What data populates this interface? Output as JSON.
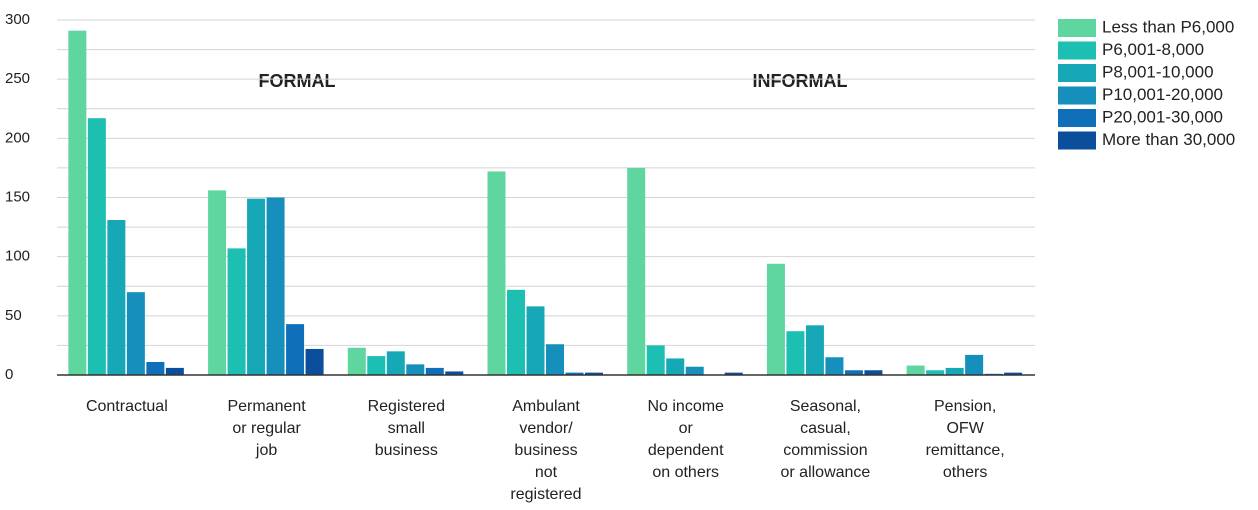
{
  "chart_data": {
    "type": "bar",
    "annotations": [
      "FORMAL",
      "INFORMAL"
    ],
    "categories": [
      "Contractual",
      "Permanent\nor regular\njob",
      "Registered\nsmall\nbusiness",
      "Ambulant\nvendor/\nbusiness\nnot\nregistered",
      "No income\nor\ndependent\non others",
      "Seasonal,\ncasual,\ncommission\nor allowance",
      "Pension,\nOFW\nremittance,\nothers"
    ],
    "series": [
      {
        "name": "Less than P6,000",
        "color": "#5fd6a0",
        "values": [
          291,
          156,
          23,
          172,
          175,
          94,
          8
        ]
      },
      {
        "name": "P6,001-8,000",
        "color": "#1dbfb3",
        "values": [
          217,
          107,
          16,
          72,
          25,
          37,
          4
        ]
      },
      {
        "name": "P8,001-10,000",
        "color": "#17a8b8",
        "values": [
          131,
          149,
          20,
          58,
          14,
          42,
          6
        ]
      },
      {
        "name": "P10,001-20,000",
        "color": "#168fbd",
        "values": [
          70,
          150,
          9,
          26,
          7,
          15,
          17
        ]
      },
      {
        "name": "P20,001-30,000",
        "color": "#0f6fb8",
        "values": [
          11,
          43,
          6,
          2,
          0,
          4,
          1
        ]
      },
      {
        "name": "More than 30,000",
        "color": "#0b4f9c",
        "values": [
          6,
          22,
          3,
          2,
          2,
          4,
          2
        ]
      }
    ],
    "ylim": [
      0,
      300
    ],
    "yticks": [
      0,
      50,
      100,
      150,
      200,
      250,
      300
    ],
    "ygrid_minor": [
      25,
      75,
      125,
      175,
      225,
      275
    ],
    "grid": true,
    "legend": "right"
  }
}
